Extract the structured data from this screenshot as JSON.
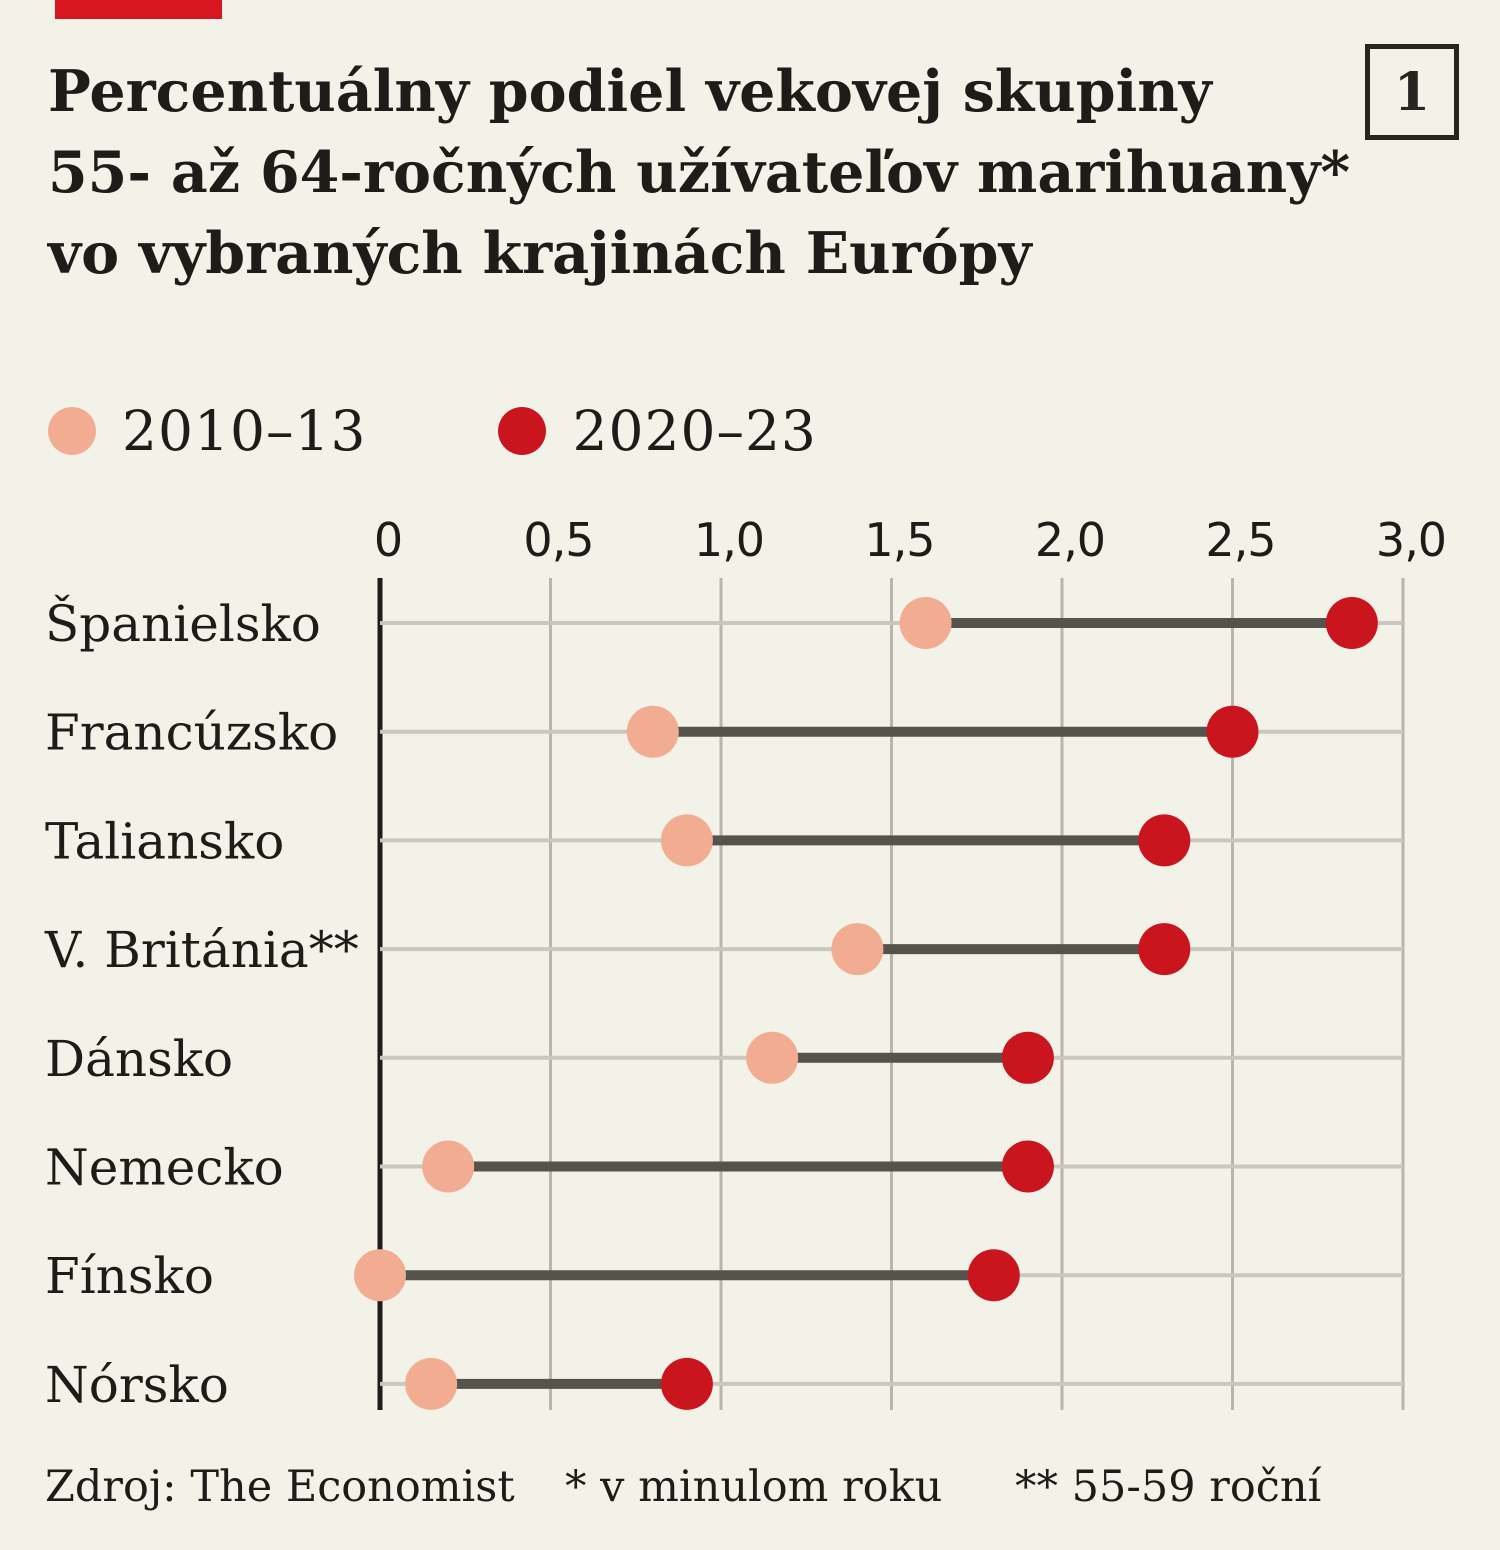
{
  "header": {
    "title": "Percentuálny podiel vekovej skupiny\n55- až 64-ročných užívateľov marihuany*\nvo vybraných krajinách Európy",
    "page_number": "1"
  },
  "colors": {
    "brand_red": "#d7161f",
    "background": "#f3f2e9",
    "connector_gray": "#56524c",
    "gridline_gray": "#b7b6ae",
    "rowline_gray": "#c9c8c0",
    "axis_black": "#1e1d1a"
  },
  "footer": {
    "source": "Zdroj: The Economist",
    "note1": "* v minulom roku",
    "note2": "** 55-59 roční"
  },
  "chart_data": {
    "type": "dumbbell",
    "title": "Percentuálny podiel vekovej skupiny 55- až 64-ročných užívateľov marihuany vo vybraných krajinách Európy",
    "unit": "percent",
    "categories": [
      "Španielsko",
      "Francúzsko",
      "Taliansko",
      "V. Británia**",
      "Dánsko",
      "Nemecko",
      "Fínsko",
      "Nórsko"
    ],
    "series": [
      {
        "name": "2010–13",
        "color": "#f1ac91",
        "values": [
          1.6,
          0.8,
          0.9,
          1.4,
          1.15,
          0.2,
          0.0,
          0.15
        ]
      },
      {
        "name": "2020–23",
        "color": "#cb151e",
        "values": [
          2.85,
          2.5,
          2.3,
          2.3,
          1.9,
          1.9,
          1.8,
          0.9
        ]
      }
    ],
    "x_ticks": [
      {
        "value": 0,
        "label": "0"
      },
      {
        "value": 0.5,
        "label": "0,5"
      },
      {
        "value": 1.0,
        "label": "1,0"
      },
      {
        "value": 1.5,
        "label": "1,5"
      },
      {
        "value": 2.0,
        "label": "2,0"
      },
      {
        "value": 2.5,
        "label": "2,5"
      },
      {
        "value": 3.0,
        "label": "3,0"
      }
    ],
    "xlim": [
      0,
      3.0
    ],
    "grid": "vertical",
    "legend_position": "top-left"
  }
}
